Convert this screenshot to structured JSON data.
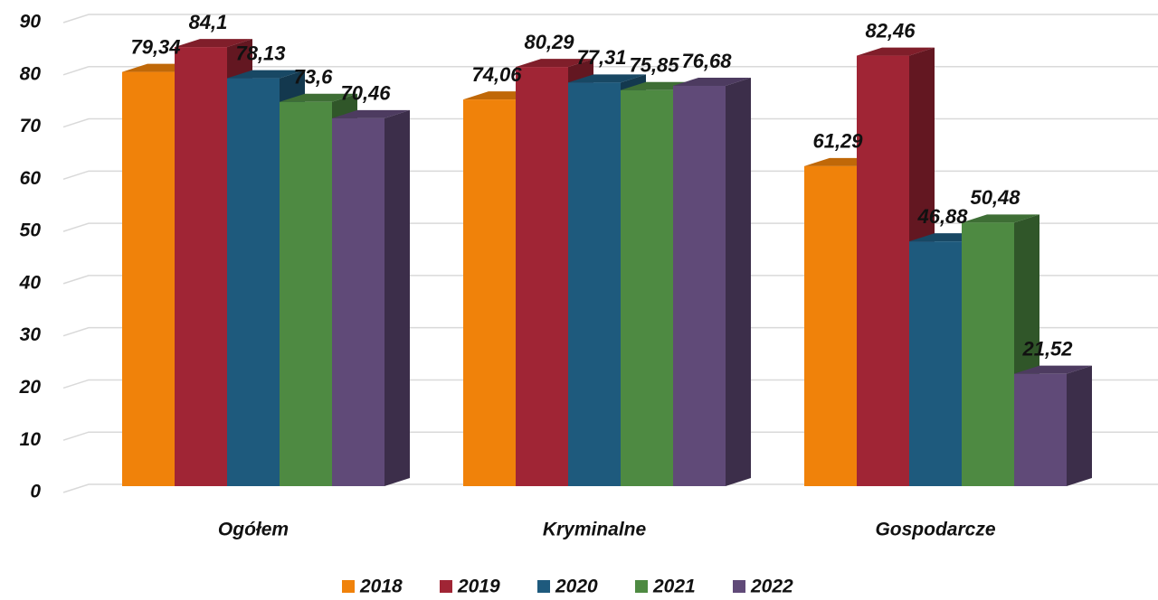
{
  "chart_data": {
    "type": "bar3d",
    "categories": [
      "Ogółem",
      "Kryminalne",
      "Gospodarcze"
    ],
    "series": [
      {
        "name": "2018",
        "color": "#f0820a",
        "values": [
          79.34,
          74.06,
          61.29
        ],
        "value_labels": [
          "79,34",
          "74,06",
          "61,29"
        ]
      },
      {
        "name": "2019",
        "color": "#a02535",
        "values": [
          84.1,
          80.29,
          82.46
        ],
        "value_labels": [
          "84,1",
          "80,29",
          "82,46"
        ]
      },
      {
        "name": "2020",
        "color": "#1e5a7d",
        "values": [
          78.13,
          77.31,
          46.88
        ],
        "value_labels": [
          "78,13",
          "77,31",
          "46,88"
        ]
      },
      {
        "name": "2021",
        "color": "#4e8a42",
        "values": [
          73.6,
          75.85,
          50.48
        ],
        "value_labels": [
          "73,6",
          "75,85",
          "50,48"
        ]
      },
      {
        "name": "2022",
        "color": "#604a78",
        "values": [
          70.46,
          76.68,
          21.52
        ],
        "value_labels": [
          "70,46",
          "76,68",
          "21,52"
        ]
      }
    ],
    "ylim": [
      0,
      90
    ],
    "yticks": [
      0,
      10,
      20,
      30,
      40,
      50,
      60,
      70,
      80,
      90
    ],
    "grid": true,
    "legend": "bottom"
  }
}
